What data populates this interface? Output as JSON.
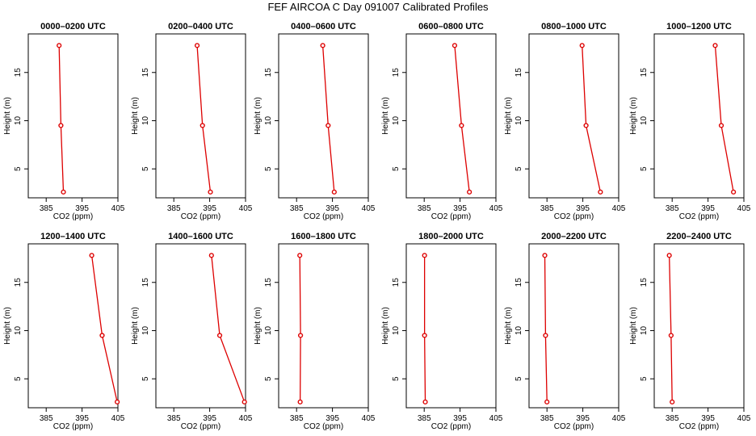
{
  "page": {
    "title": "FEF AIRCOA C  Day 091007  Calibrated Profiles"
  },
  "colors": {
    "line": "#dd0000",
    "axis": "#000000",
    "background": "#ffffff"
  },
  "chart_data": [
    {
      "type": "line",
      "title": "0000–0200 UTC",
      "xlabel": "CO2 (ppm)",
      "ylabel": "Height (m)",
      "xlim": [
        380,
        405
      ],
      "ylim": [
        2,
        19
      ],
      "xticks": [
        385,
        395,
        405
      ],
      "yticks": [
        5,
        10,
        15
      ],
      "series": [
        {
          "values": [
            {
              "x": 389.8,
              "y": 2.6
            },
            {
              "x": 389.1,
              "y": 9.5
            },
            {
              "x": 388.6,
              "y": 17.8
            }
          ]
        }
      ]
    },
    {
      "type": "line",
      "title": "0200–0400 UTC",
      "xlabel": "CO2 (ppm)",
      "ylabel": "Height (m)",
      "xlim": [
        380,
        405
      ],
      "ylim": [
        2,
        19
      ],
      "xticks": [
        385,
        395,
        405
      ],
      "yticks": [
        5,
        10,
        15
      ],
      "series": [
        {
          "values": [
            {
              "x": 395.2,
              "y": 2.6
            },
            {
              "x": 393.0,
              "y": 9.5
            },
            {
              "x": 391.5,
              "y": 17.8
            }
          ]
        }
      ]
    },
    {
      "type": "line",
      "title": "0400–0600 UTC",
      "xlabel": "CO2 (ppm)",
      "ylabel": "Height (m)",
      "xlim": [
        380,
        405
      ],
      "ylim": [
        2,
        19
      ],
      "xticks": [
        385,
        395,
        405
      ],
      "yticks": [
        5,
        10,
        15
      ],
      "series": [
        {
          "values": [
            {
              "x": 395.5,
              "y": 2.6
            },
            {
              "x": 393.8,
              "y": 9.5
            },
            {
              "x": 392.3,
              "y": 17.8
            }
          ]
        }
      ]
    },
    {
      "type": "line",
      "title": "0600–0800 UTC",
      "xlabel": "CO2 (ppm)",
      "ylabel": "Height (m)",
      "xlim": [
        380,
        405
      ],
      "ylim": [
        2,
        19
      ],
      "xticks": [
        385,
        395,
        405
      ],
      "yticks": [
        5,
        10,
        15
      ],
      "series": [
        {
          "values": [
            {
              "x": 397.6,
              "y": 2.6
            },
            {
              "x": 395.4,
              "y": 9.5
            },
            {
              "x": 393.5,
              "y": 17.8
            }
          ]
        }
      ]
    },
    {
      "type": "line",
      "title": "0800–1000 UTC",
      "xlabel": "CO2 (ppm)",
      "ylabel": "Height (m)",
      "xlim": [
        380,
        405
      ],
      "ylim": [
        2,
        19
      ],
      "xticks": [
        385,
        395,
        405
      ],
      "yticks": [
        5,
        10,
        15
      ],
      "series": [
        {
          "values": [
            {
              "x": 399.9,
              "y": 2.6
            },
            {
              "x": 395.9,
              "y": 9.5
            },
            {
              "x": 394.8,
              "y": 17.8
            }
          ]
        }
      ]
    },
    {
      "type": "line",
      "title": "1000–1200 UTC",
      "xlabel": "CO2 (ppm)",
      "ylabel": "Height (m)",
      "xlim": [
        380,
        405
      ],
      "ylim": [
        2,
        19
      ],
      "xticks": [
        385,
        395,
        405
      ],
      "yticks": [
        5,
        10,
        15
      ],
      "series": [
        {
          "values": [
            {
              "x": 402.1,
              "y": 2.6
            },
            {
              "x": 398.7,
              "y": 9.5
            },
            {
              "x": 397.0,
              "y": 17.8
            }
          ]
        }
      ]
    },
    {
      "type": "line",
      "title": "1200–1400 UTC",
      "xlabel": "CO2 (ppm)",
      "ylabel": "Height (m)",
      "xlim": [
        380,
        405
      ],
      "ylim": [
        2,
        19
      ],
      "xticks": [
        385,
        395,
        405
      ],
      "yticks": [
        5,
        10,
        15
      ],
      "series": [
        {
          "values": [
            {
              "x": 404.8,
              "y": 2.6
            },
            {
              "x": 400.6,
              "y": 9.5
            },
            {
              "x": 397.7,
              "y": 17.8
            }
          ]
        }
      ]
    },
    {
      "type": "line",
      "title": "1400–1600 UTC",
      "xlabel": "CO2 (ppm)",
      "ylabel": "Height (m)",
      "xlim": [
        380,
        405
      ],
      "ylim": [
        2,
        19
      ],
      "xticks": [
        385,
        395,
        405
      ],
      "yticks": [
        5,
        10,
        15
      ],
      "series": [
        {
          "values": [
            {
              "x": 404.7,
              "y": 2.6
            },
            {
              "x": 397.8,
              "y": 9.5
            },
            {
              "x": 395.5,
              "y": 17.8
            }
          ]
        }
      ]
    },
    {
      "type": "line",
      "title": "1600–1800 UTC",
      "xlabel": "CO2 (ppm)",
      "ylabel": "Height (m)",
      "xlim": [
        380,
        405
      ],
      "ylim": [
        2,
        19
      ],
      "xticks": [
        385,
        395,
        405
      ],
      "yticks": [
        5,
        10,
        15
      ],
      "series": [
        {
          "values": [
            {
              "x": 386.0,
              "y": 2.6
            },
            {
              "x": 386.1,
              "y": 9.5
            },
            {
              "x": 385.9,
              "y": 17.8
            }
          ]
        }
      ]
    },
    {
      "type": "line",
      "title": "1800–2000 UTC",
      "xlabel": "CO2 (ppm)",
      "ylabel": "Height (m)",
      "xlim": [
        380,
        405
      ],
      "ylim": [
        2,
        19
      ],
      "xticks": [
        385,
        395,
        405
      ],
      "yticks": [
        5,
        10,
        15
      ],
      "series": [
        {
          "values": [
            {
              "x": 385.3,
              "y": 2.6
            },
            {
              "x": 385.1,
              "y": 9.5
            },
            {
              "x": 385.1,
              "y": 17.8
            }
          ]
        }
      ]
    },
    {
      "type": "line",
      "title": "2000–2200 UTC",
      "xlabel": "CO2 (ppm)",
      "ylabel": "Height (m)",
      "xlim": [
        380,
        405
      ],
      "ylim": [
        2,
        19
      ],
      "xticks": [
        385,
        395,
        405
      ],
      "yticks": [
        5,
        10,
        15
      ],
      "series": [
        {
          "values": [
            {
              "x": 385.0,
              "y": 2.6
            },
            {
              "x": 384.6,
              "y": 9.5
            },
            {
              "x": 384.4,
              "y": 17.8
            }
          ]
        }
      ]
    },
    {
      "type": "line",
      "title": "2200–2400 UTC",
      "xlabel": "CO2 (ppm)",
      "ylabel": "Height (m)",
      "xlim": [
        380,
        405
      ],
      "ylim": [
        2,
        19
      ],
      "xticks": [
        385,
        395,
        405
      ],
      "yticks": [
        5,
        10,
        15
      ],
      "series": [
        {
          "values": [
            {
              "x": 385.0,
              "y": 2.6
            },
            {
              "x": 384.7,
              "y": 9.5
            },
            {
              "x": 384.2,
              "y": 17.8
            }
          ]
        }
      ]
    }
  ]
}
